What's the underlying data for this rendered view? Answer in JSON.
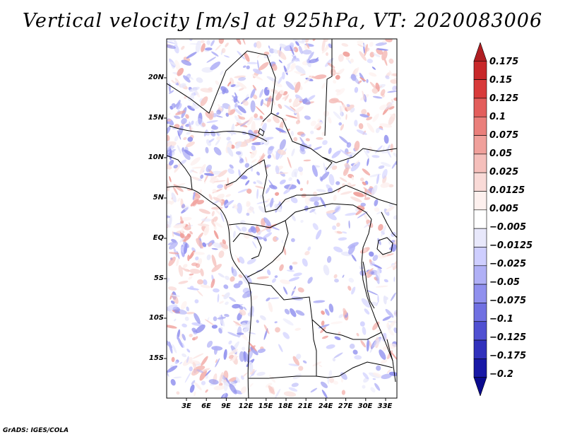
{
  "title": "Vertical velocity [m/s] at 925hPa, VT: 2020083006",
  "credit": "GrADS: IGES/COLA",
  "map": {
    "lat_labels": [
      "20N",
      "15N",
      "10N",
      "5N",
      "EQ",
      "5S",
      "10S",
      "15S"
    ],
    "lon_labels": [
      "3E",
      "6E",
      "9E",
      "12E",
      "15E",
      "18E",
      "21E",
      "24E",
      "27E",
      "30E",
      "33E"
    ]
  },
  "colorbar": {
    "labels": [
      "0.175",
      "0.15",
      "0.125",
      "0.1",
      "0.075",
      "0.05",
      "0.025",
      "0.0125",
      "0.005",
      "−0.005",
      "−0.0125",
      "−0.025",
      "−0.05",
      "−0.075",
      "−0.1",
      "−0.125",
      "−0.175",
      "−0.2"
    ],
    "colors": [
      "#b01e22",
      "#c8282a",
      "#d83a3a",
      "#e35e5c",
      "#ea7f7b",
      "#f0a09b",
      "#f5bfbb",
      "#f9dad7",
      "#fdf0ee",
      "#ffffff",
      "#e8e8fb",
      "#ceceff",
      "#b0b0f6",
      "#9090ee",
      "#7070e2",
      "#5050d2",
      "#3030bc",
      "#1818a6",
      "#0a0a8e"
    ]
  }
}
